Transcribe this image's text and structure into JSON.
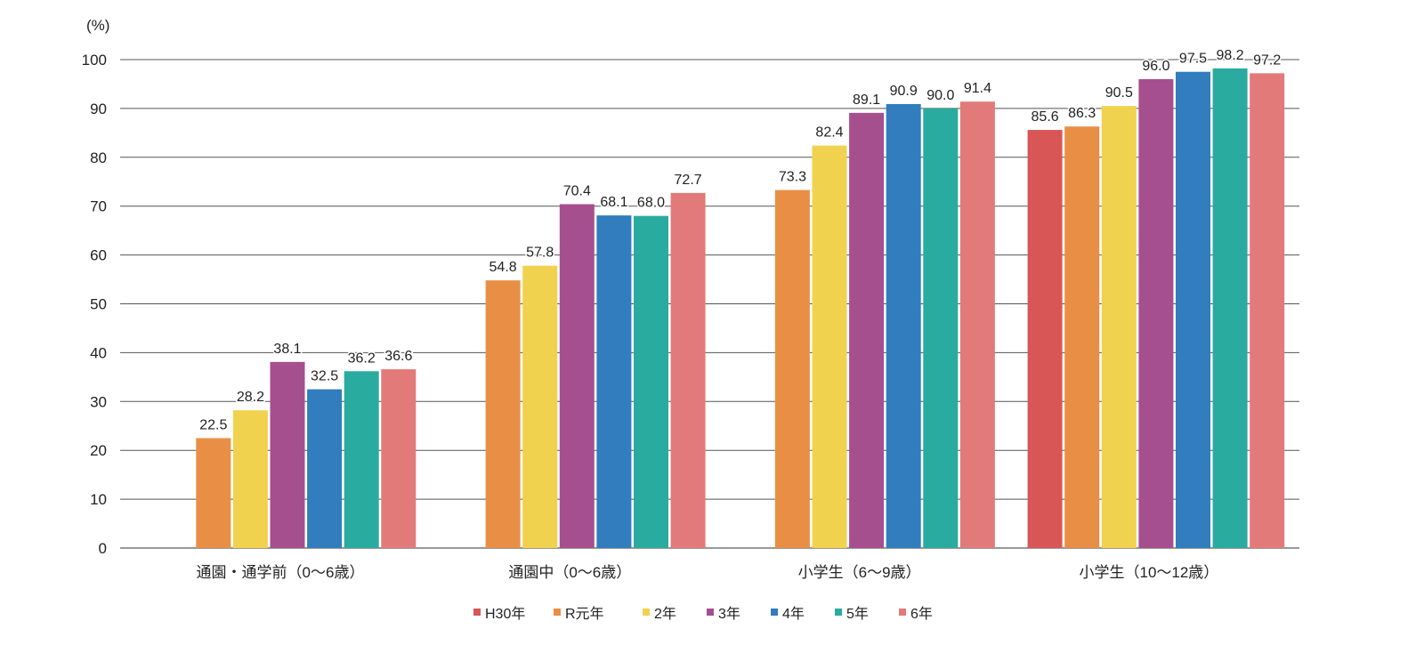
{
  "chart_data": {
    "type": "bar",
    "title": "",
    "ylabel": "(%)",
    "xlabel": "",
    "ylim": [
      0,
      100
    ],
    "yticks": [
      0,
      10,
      20,
      30,
      40,
      50,
      60,
      70,
      80,
      90,
      100
    ],
    "grid": true,
    "legend_position": "bottom",
    "categories": [
      "通園・通学前（0〜6歳）",
      "通園中（0〜6歳）",
      "小学生（6〜9歳）",
      "小学生（10〜12歳）"
    ],
    "series": [
      {
        "name": "H30年",
        "color": "#d95656",
        "values": [
          null,
          null,
          null,
          85.6
        ]
      },
      {
        "name": "R元年",
        "color": "#e98f45",
        "values": [
          22.5,
          54.8,
          73.3,
          86.3
        ]
      },
      {
        "name": "2年",
        "color": "#f1d24f",
        "values": [
          28.2,
          57.8,
          82.4,
          90.5
        ]
      },
      {
        "name": "3年",
        "color": "#a64f8f",
        "values": [
          38.1,
          70.4,
          89.1,
          96.0
        ]
      },
      {
        "name": "4年",
        "color": "#317dbd",
        "values": [
          32.5,
          68.1,
          90.9,
          97.5
        ]
      },
      {
        "name": "5年",
        "color": "#2aab9f",
        "values": [
          36.2,
          68.0,
          90.0,
          98.2
        ]
      },
      {
        "name": "6年",
        "color": "#e27a7a",
        "values": [
          36.6,
          72.7,
          91.4,
          97.2
        ]
      }
    ]
  }
}
